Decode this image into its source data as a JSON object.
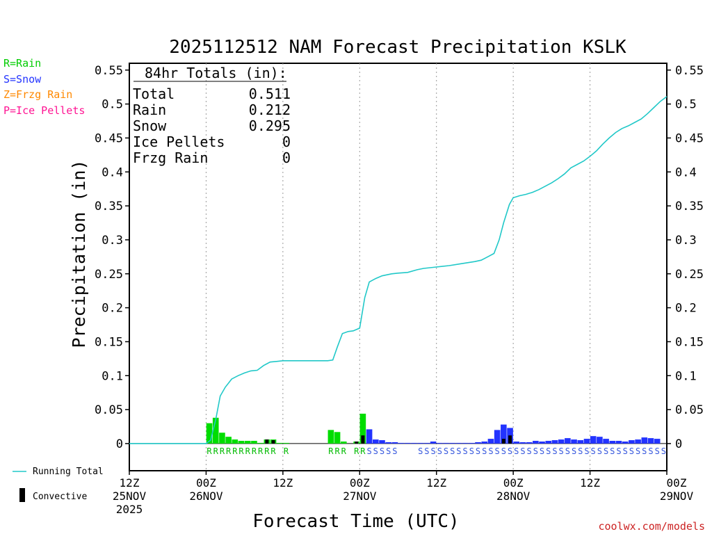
{
  "chart_data": {
    "type": "bar",
    "title": "2025112512 NAM Forecast Precipitation KSLK",
    "ylabel": "Precipitation (in)",
    "xlabel": "Forecast Time (UTC)",
    "ylim": [
      -0.04,
      0.56
    ],
    "xlim_hours": [
      0,
      84
    ],
    "y_ticks": [
      "0.55",
      "0.5",
      "0.45",
      "0.4",
      "0.35",
      "0.3",
      "0.25",
      "0.2",
      "0.15",
      "0.1",
      "0.05",
      "0"
    ],
    "y_tick_values": [
      0.55,
      0.5,
      0.45,
      0.4,
      0.35,
      0.3,
      0.25,
      0.2,
      0.15,
      0.1,
      0.05,
      0
    ],
    "x_ticks": [
      {
        "hour": 0,
        "time": "12Z",
        "date": "25NOV",
        "year": "2025"
      },
      {
        "hour": 12,
        "time": "00Z",
        "date": "26NOV",
        "year": ""
      },
      {
        "hour": 24,
        "time": "12Z",
        "date": "",
        "year": ""
      },
      {
        "hour": 36,
        "time": "00Z",
        "date": "27NOV",
        "year": ""
      },
      {
        "hour": 48,
        "time": "12Z",
        "date": "",
        "year": ""
      },
      {
        "hour": 60,
        "time": "00Z",
        "date": "28NOV",
        "year": ""
      },
      {
        "hour": 72,
        "time": "12Z",
        "date": "",
        "year": ""
      },
      {
        "hour": 84,
        "time": "00Z",
        "date": "29NOV",
        "year": ""
      }
    ],
    "legend_types": [
      {
        "label": "R=Rain",
        "color": "#00cc00"
      },
      {
        "label": "S=Snow",
        "color": "#2233ff"
      },
      {
        "label": "Z=Frzg Rain",
        "color": "#ff8800"
      },
      {
        "label": "P=Ice Pellets",
        "color": "#ff1493"
      }
    ],
    "legend_lines": {
      "running_total": "Running Total",
      "convective": "Convective"
    },
    "totals_box": {
      "heading": "84hr Totals (in):",
      "rows": [
        {
          "label": "Total",
          "value": "0.511"
        },
        {
          "label": "Rain",
          "value": "0.212"
        },
        {
          "label": "Snow",
          "value": "0.295"
        },
        {
          "label": "Ice Pellets",
          "value": "0"
        },
        {
          "label": "Frzg Rain",
          "value": "0"
        }
      ]
    },
    "precip_bars": [
      {
        "h": 13,
        "v": 0.03,
        "type": "R"
      },
      {
        "h": 14,
        "v": 0.038,
        "type": "R"
      },
      {
        "h": 15,
        "v": 0.016,
        "type": "R"
      },
      {
        "h": 16,
        "v": 0.01,
        "type": "R"
      },
      {
        "h": 17,
        "v": 0.006,
        "type": "R"
      },
      {
        "h": 18,
        "v": 0.004,
        "type": "R"
      },
      {
        "h": 19,
        "v": 0.004,
        "type": "R"
      },
      {
        "h": 20,
        "v": 0.004,
        "type": "R"
      },
      {
        "h": 21,
        "v": 0.001,
        "type": "R"
      },
      {
        "h": 22,
        "v": 0.006,
        "type": "R"
      },
      {
        "h": 23,
        "v": 0.006,
        "type": "R"
      },
      {
        "h": 24,
        "v": 0.001,
        "type": "R"
      },
      {
        "h": 25,
        "v": 0.001,
        "type": "R"
      },
      {
        "h": 32,
        "v": 0.02,
        "type": "R"
      },
      {
        "h": 33,
        "v": 0.017,
        "type": "R"
      },
      {
        "h": 34,
        "v": 0.003,
        "type": "R"
      },
      {
        "h": 36,
        "v": 0.003,
        "type": "R"
      },
      {
        "h": 37,
        "v": 0.044,
        "type": "R"
      },
      {
        "h": 38,
        "v": 0.021,
        "type": "S"
      },
      {
        "h": 39,
        "v": 0.006,
        "type": "S"
      },
      {
        "h": 40,
        "v": 0.005,
        "type": "S"
      },
      {
        "h": 41,
        "v": 0.002,
        "type": "S"
      },
      {
        "h": 42,
        "v": 0.002,
        "type": "S"
      },
      {
        "h": 43,
        "v": 0.001,
        "type": "S"
      },
      {
        "h": 44,
        "v": 0.001,
        "type": "S"
      },
      {
        "h": 45,
        "v": 0.001,
        "type": "S"
      },
      {
        "h": 46,
        "v": 0.001,
        "type": "S"
      },
      {
        "h": 47,
        "v": 0.001,
        "type": "S"
      },
      {
        "h": 48,
        "v": 0.003,
        "type": "S"
      },
      {
        "h": 49,
        "v": 0.001,
        "type": "S"
      },
      {
        "h": 50,
        "v": 0.001,
        "type": "S"
      },
      {
        "h": 51,
        "v": 0.001,
        "type": "S"
      },
      {
        "h": 52,
        "v": 0.001,
        "type": "S"
      },
      {
        "h": 53,
        "v": 0.001,
        "type": "S"
      },
      {
        "h": 54,
        "v": 0.001,
        "type": "S"
      },
      {
        "h": 55,
        "v": 0.002,
        "type": "S"
      },
      {
        "h": 56,
        "v": 0.003,
        "type": "S"
      },
      {
        "h": 57,
        "v": 0.007,
        "type": "S"
      },
      {
        "h": 58,
        "v": 0.02,
        "type": "S"
      },
      {
        "h": 59,
        "v": 0.028,
        "type": "S"
      },
      {
        "h": 60,
        "v": 0.023,
        "type": "S"
      },
      {
        "h": 61,
        "v": 0.003,
        "type": "S"
      },
      {
        "h": 62,
        "v": 0.002,
        "type": "S"
      },
      {
        "h": 63,
        "v": 0.002,
        "type": "S"
      },
      {
        "h": 64,
        "v": 0.004,
        "type": "S"
      },
      {
        "h": 65,
        "v": 0.003,
        "type": "S"
      },
      {
        "h": 66,
        "v": 0.004,
        "type": "S"
      },
      {
        "h": 67,
        "v": 0.005,
        "type": "S"
      },
      {
        "h": 68,
        "v": 0.006,
        "type": "S"
      },
      {
        "h": 69,
        "v": 0.008,
        "type": "S"
      },
      {
        "h": 70,
        "v": 0.006,
        "type": "S"
      },
      {
        "h": 71,
        "v": 0.005,
        "type": "S"
      },
      {
        "h": 72,
        "v": 0.007,
        "type": "S"
      },
      {
        "h": 73,
        "v": 0.011,
        "type": "S"
      },
      {
        "h": 74,
        "v": 0.01,
        "type": "S"
      },
      {
        "h": 75,
        "v": 0.007,
        "type": "S"
      },
      {
        "h": 76,
        "v": 0.004,
        "type": "S"
      },
      {
        "h": 77,
        "v": 0.004,
        "type": "S"
      },
      {
        "h": 78,
        "v": 0.003,
        "type": "S"
      },
      {
        "h": 79,
        "v": 0.005,
        "type": "S"
      },
      {
        "h": 80,
        "v": 0.006,
        "type": "S"
      },
      {
        "h": 81,
        "v": 0.009,
        "type": "S"
      },
      {
        "h": 82,
        "v": 0.008,
        "type": "S"
      },
      {
        "h": 83,
        "v": 0.007,
        "type": "S"
      }
    ],
    "convective_bars": [
      {
        "h": 22,
        "v": 0.006
      },
      {
        "h": 23,
        "v": 0.005
      },
      {
        "h": 36,
        "v": 0.003
      },
      {
        "h": 37,
        "v": 0.012
      },
      {
        "h": 59,
        "v": 0.007
      },
      {
        "h": 60,
        "v": 0.012
      }
    ],
    "type_labels": [
      {
        "h": 13,
        "t": "R"
      },
      {
        "h": 14,
        "t": "R"
      },
      {
        "h": 15,
        "t": "R"
      },
      {
        "h": 16,
        "t": "R"
      },
      {
        "h": 17,
        "t": "R"
      },
      {
        "h": 18,
        "t": "R"
      },
      {
        "h": 19,
        "t": "R"
      },
      {
        "h": 20,
        "t": "R"
      },
      {
        "h": 21,
        "t": "R"
      },
      {
        "h": 22,
        "t": "R"
      },
      {
        "h": 23,
        "t": "R"
      },
      {
        "h": 25,
        "t": "R"
      },
      {
        "h": 32,
        "t": "R"
      },
      {
        "h": 33,
        "t": "R"
      },
      {
        "h": 34,
        "t": "R"
      },
      {
        "h": 36,
        "t": "R"
      },
      {
        "h": 37,
        "t": "R"
      },
      {
        "h": 38,
        "t": "S"
      },
      {
        "h": 39,
        "t": "S"
      },
      {
        "h": 40,
        "t": "S"
      },
      {
        "h": 41,
        "t": "S"
      },
      {
        "h": 42,
        "t": "S"
      },
      {
        "h": 46,
        "t": "S"
      },
      {
        "h": 47,
        "t": "S"
      },
      {
        "h": 48,
        "t": "S"
      },
      {
        "h": 49,
        "t": "S"
      },
      {
        "h": 50,
        "t": "S"
      },
      {
        "h": 51,
        "t": "S"
      },
      {
        "h": 52,
        "t": "S"
      },
      {
        "h": 53,
        "t": "S"
      },
      {
        "h": 54,
        "t": "S"
      },
      {
        "h": 55,
        "t": "S"
      },
      {
        "h": 56,
        "t": "S"
      },
      {
        "h": 57,
        "t": "S"
      },
      {
        "h": 58,
        "t": "S"
      },
      {
        "h": 59,
        "t": "S"
      },
      {
        "h": 60,
        "t": "S"
      },
      {
        "h": 61,
        "t": "S"
      },
      {
        "h": 62,
        "t": "S"
      },
      {
        "h": 63,
        "t": "S"
      },
      {
        "h": 64,
        "t": "S"
      },
      {
        "h": 65,
        "t": "S"
      },
      {
        "h": 66,
        "t": "S"
      },
      {
        "h": 67,
        "t": "S"
      },
      {
        "h": 68,
        "t": "S"
      },
      {
        "h": 69,
        "t": "S"
      },
      {
        "h": 70,
        "t": "S"
      },
      {
        "h": 71,
        "t": "S"
      },
      {
        "h": 72,
        "t": "S"
      },
      {
        "h": 73,
        "t": "S"
      },
      {
        "h": 74,
        "t": "S"
      },
      {
        "h": 75,
        "t": "S"
      },
      {
        "h": 76,
        "t": "S"
      },
      {
        "h": 77,
        "t": "S"
      },
      {
        "h": 78,
        "t": "S"
      },
      {
        "h": 79,
        "t": "S"
      },
      {
        "h": 80,
        "t": "S"
      },
      {
        "h": 81,
        "t": "S"
      },
      {
        "h": 82,
        "t": "S"
      },
      {
        "h": 83,
        "t": "S"
      },
      {
        "h": 84,
        "t": "S"
      }
    ],
    "running_total": [
      [
        0,
        0
      ],
      [
        12,
        0
      ],
      [
        12.7,
        0.005
      ],
      [
        13.5,
        0.035
      ],
      [
        14.2,
        0.07
      ],
      [
        15,
        0.083
      ],
      [
        16,
        0.095
      ],
      [
        17,
        0.1
      ],
      [
        18,
        0.104
      ],
      [
        19,
        0.107
      ],
      [
        20,
        0.108
      ],
      [
        21,
        0.115
      ],
      [
        22,
        0.12
      ],
      [
        23,
        0.121
      ],
      [
        24,
        0.122
      ],
      [
        25,
        0.122
      ],
      [
        31,
        0.122
      ],
      [
        31.8,
        0.123
      ],
      [
        32.5,
        0.142
      ],
      [
        33.3,
        0.162
      ],
      [
        34.2,
        0.165
      ],
      [
        35,
        0.166
      ],
      [
        36,
        0.17
      ],
      [
        36.8,
        0.215
      ],
      [
        37.5,
        0.238
      ],
      [
        38.5,
        0.243
      ],
      [
        39.5,
        0.247
      ],
      [
        41,
        0.25
      ],
      [
        42,
        0.251
      ],
      [
        43.5,
        0.252
      ],
      [
        45,
        0.256
      ],
      [
        46,
        0.258
      ],
      [
        47,
        0.259
      ],
      [
        48,
        0.26
      ],
      [
        50,
        0.262
      ],
      [
        52,
        0.265
      ],
      [
        54,
        0.268
      ],
      [
        55,
        0.27
      ],
      [
        56,
        0.275
      ],
      [
        57,
        0.28
      ],
      [
        57.8,
        0.3
      ],
      [
        58.5,
        0.325
      ],
      [
        59.4,
        0.352
      ],
      [
        60,
        0.362
      ],
      [
        61,
        0.365
      ],
      [
        62,
        0.367
      ],
      [
        63,
        0.37
      ],
      [
        64,
        0.374
      ],
      [
        65,
        0.379
      ],
      [
        66,
        0.384
      ],
      [
        67,
        0.39
      ],
      [
        68,
        0.397
      ],
      [
        69,
        0.406
      ],
      [
        70,
        0.411
      ],
      [
        71,
        0.416
      ],
      [
        72,
        0.423
      ],
      [
        73,
        0.431
      ],
      [
        74,
        0.441
      ],
      [
        75,
        0.45
      ],
      [
        76,
        0.458
      ],
      [
        77,
        0.464
      ],
      [
        78,
        0.468
      ],
      [
        79,
        0.473
      ],
      [
        80,
        0.478
      ],
      [
        81,
        0.486
      ],
      [
        82,
        0.495
      ],
      [
        83,
        0.504
      ],
      [
        84,
        0.511
      ]
    ]
  },
  "watermark": "coolwx.com/models"
}
